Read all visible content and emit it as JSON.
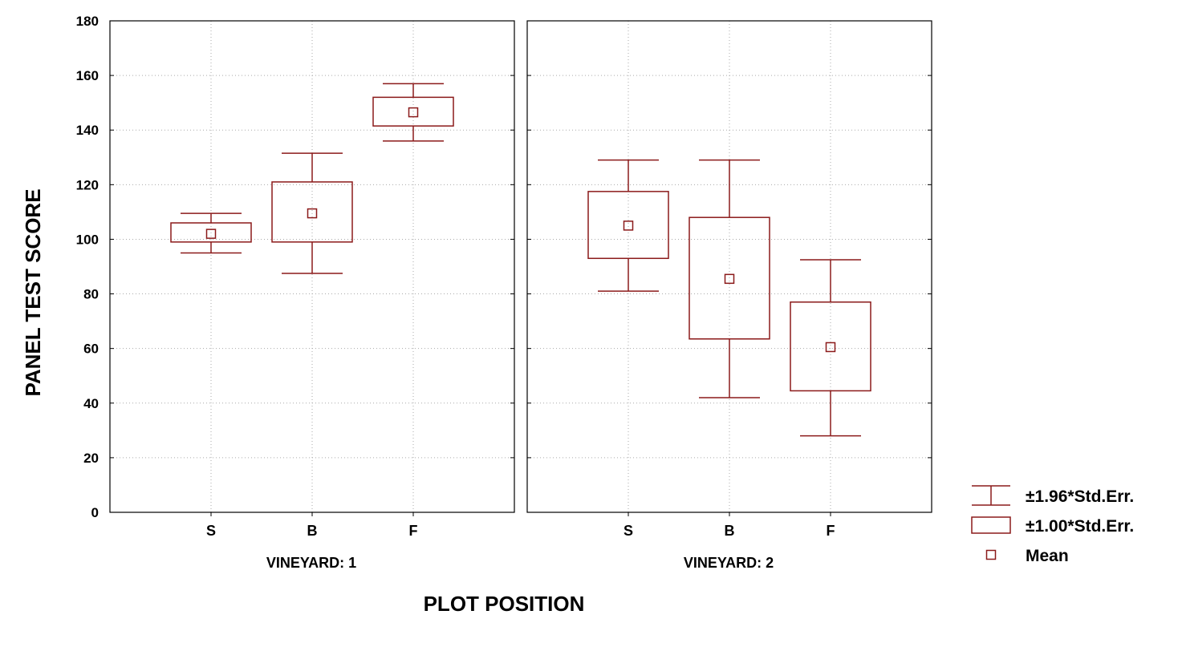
{
  "chart_data": {
    "type": "box",
    "ylabel": "PANEL TEST SCORE",
    "xlabel": "PLOT POSITION",
    "ylim": [
      0,
      180
    ],
    "yticks": [
      0,
      20,
      40,
      60,
      80,
      100,
      120,
      140,
      160,
      180
    ],
    "categories": [
      "S",
      "B",
      "F"
    ],
    "grid": true,
    "legend_position": "bottom-right",
    "colors": {
      "marks": "#8b1a1a",
      "grid": "#aaaaaa",
      "frame": "#000000"
    },
    "panels": [
      {
        "label": "VINEYARD: 1",
        "groups": [
          {
            "category": "S",
            "mean": 102,
            "box_low": 99,
            "box_high": 106,
            "whisker_low": 95,
            "whisker_high": 109.5
          },
          {
            "category": "B",
            "mean": 109.5,
            "box_low": 99,
            "box_high": 121,
            "whisker_low": 87.5,
            "whisker_high": 131.5
          },
          {
            "category": "F",
            "mean": 146.5,
            "box_low": 141.5,
            "box_high": 152,
            "whisker_low": 136,
            "whisker_high": 157
          }
        ]
      },
      {
        "label": "VINEYARD: 2",
        "groups": [
          {
            "category": "S",
            "mean": 105,
            "box_low": 93,
            "box_high": 117.5,
            "whisker_low": 81,
            "whisker_high": 129
          },
          {
            "category": "B",
            "mean": 85.5,
            "box_low": 63.5,
            "box_high": 108,
            "whisker_low": 42,
            "whisker_high": 129
          },
          {
            "category": "F",
            "mean": 60.5,
            "box_low": 44.5,
            "box_high": 77,
            "whisker_low": 28,
            "whisker_high": 92.5
          }
        ]
      }
    ],
    "legend": [
      {
        "symbol": "whisker",
        "label": "±1.96*Std.Err."
      },
      {
        "symbol": "box",
        "label": "±1.00*Std.Err."
      },
      {
        "symbol": "mean",
        "label": "Mean"
      }
    ]
  }
}
